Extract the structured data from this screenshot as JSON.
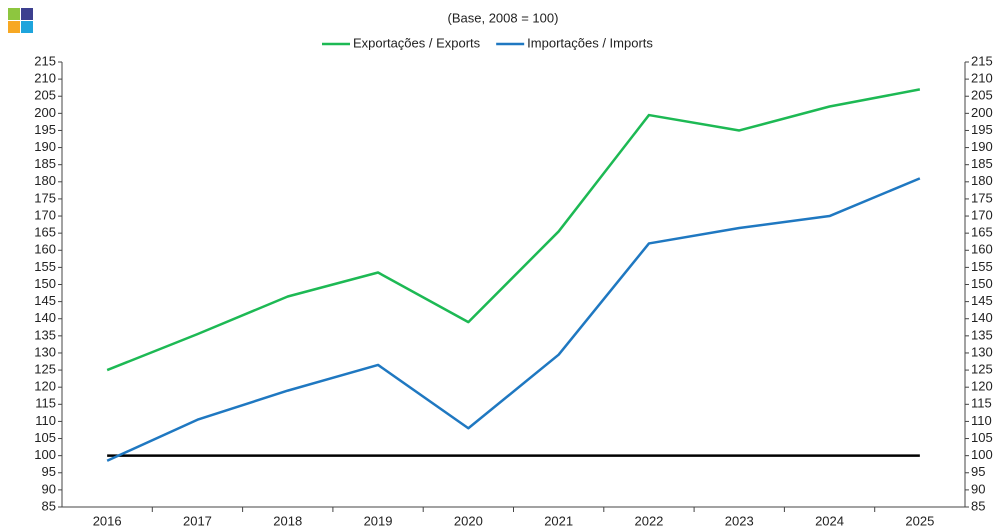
{
  "chart_data": {
    "type": "line",
    "subtitle": "(Base, 2008 = 100)",
    "categories": [
      "2016",
      "2017",
      "2018",
      "2019",
      "2020",
      "2021",
      "2022",
      "2023",
      "2024",
      "2025"
    ],
    "series": [
      {
        "name": "Exportações / Exports",
        "color": "#1db954",
        "values": [
          125,
          135.5,
          146.5,
          153.5,
          139,
          165.5,
          199.5,
          195,
          202,
          207
        ]
      },
      {
        "name": "Importações / Imports",
        "color": "#1f78c1",
        "values": [
          98.5,
          110.5,
          119,
          126.5,
          108,
          129.5,
          162,
          166.5,
          170,
          181
        ]
      }
    ],
    "reference_line": 100,
    "reference_color": "#000000",
    "ylim": [
      85,
      215
    ],
    "yticks": [
      85,
      90,
      95,
      100,
      105,
      110,
      115,
      120,
      125,
      130,
      135,
      140,
      145,
      150,
      155,
      160,
      165,
      170,
      175,
      180,
      185,
      190,
      195,
      200,
      205,
      210,
      215
    ],
    "y2lim": [
      85,
      215
    ],
    "y2ticks": [
      85,
      90,
      95,
      100,
      105,
      110,
      115,
      120,
      125,
      130,
      135,
      140,
      145,
      150,
      155,
      160,
      165,
      170,
      175,
      180,
      185,
      190,
      195,
      200,
      205,
      210,
      215
    ],
    "legend": "top",
    "grid": false
  }
}
